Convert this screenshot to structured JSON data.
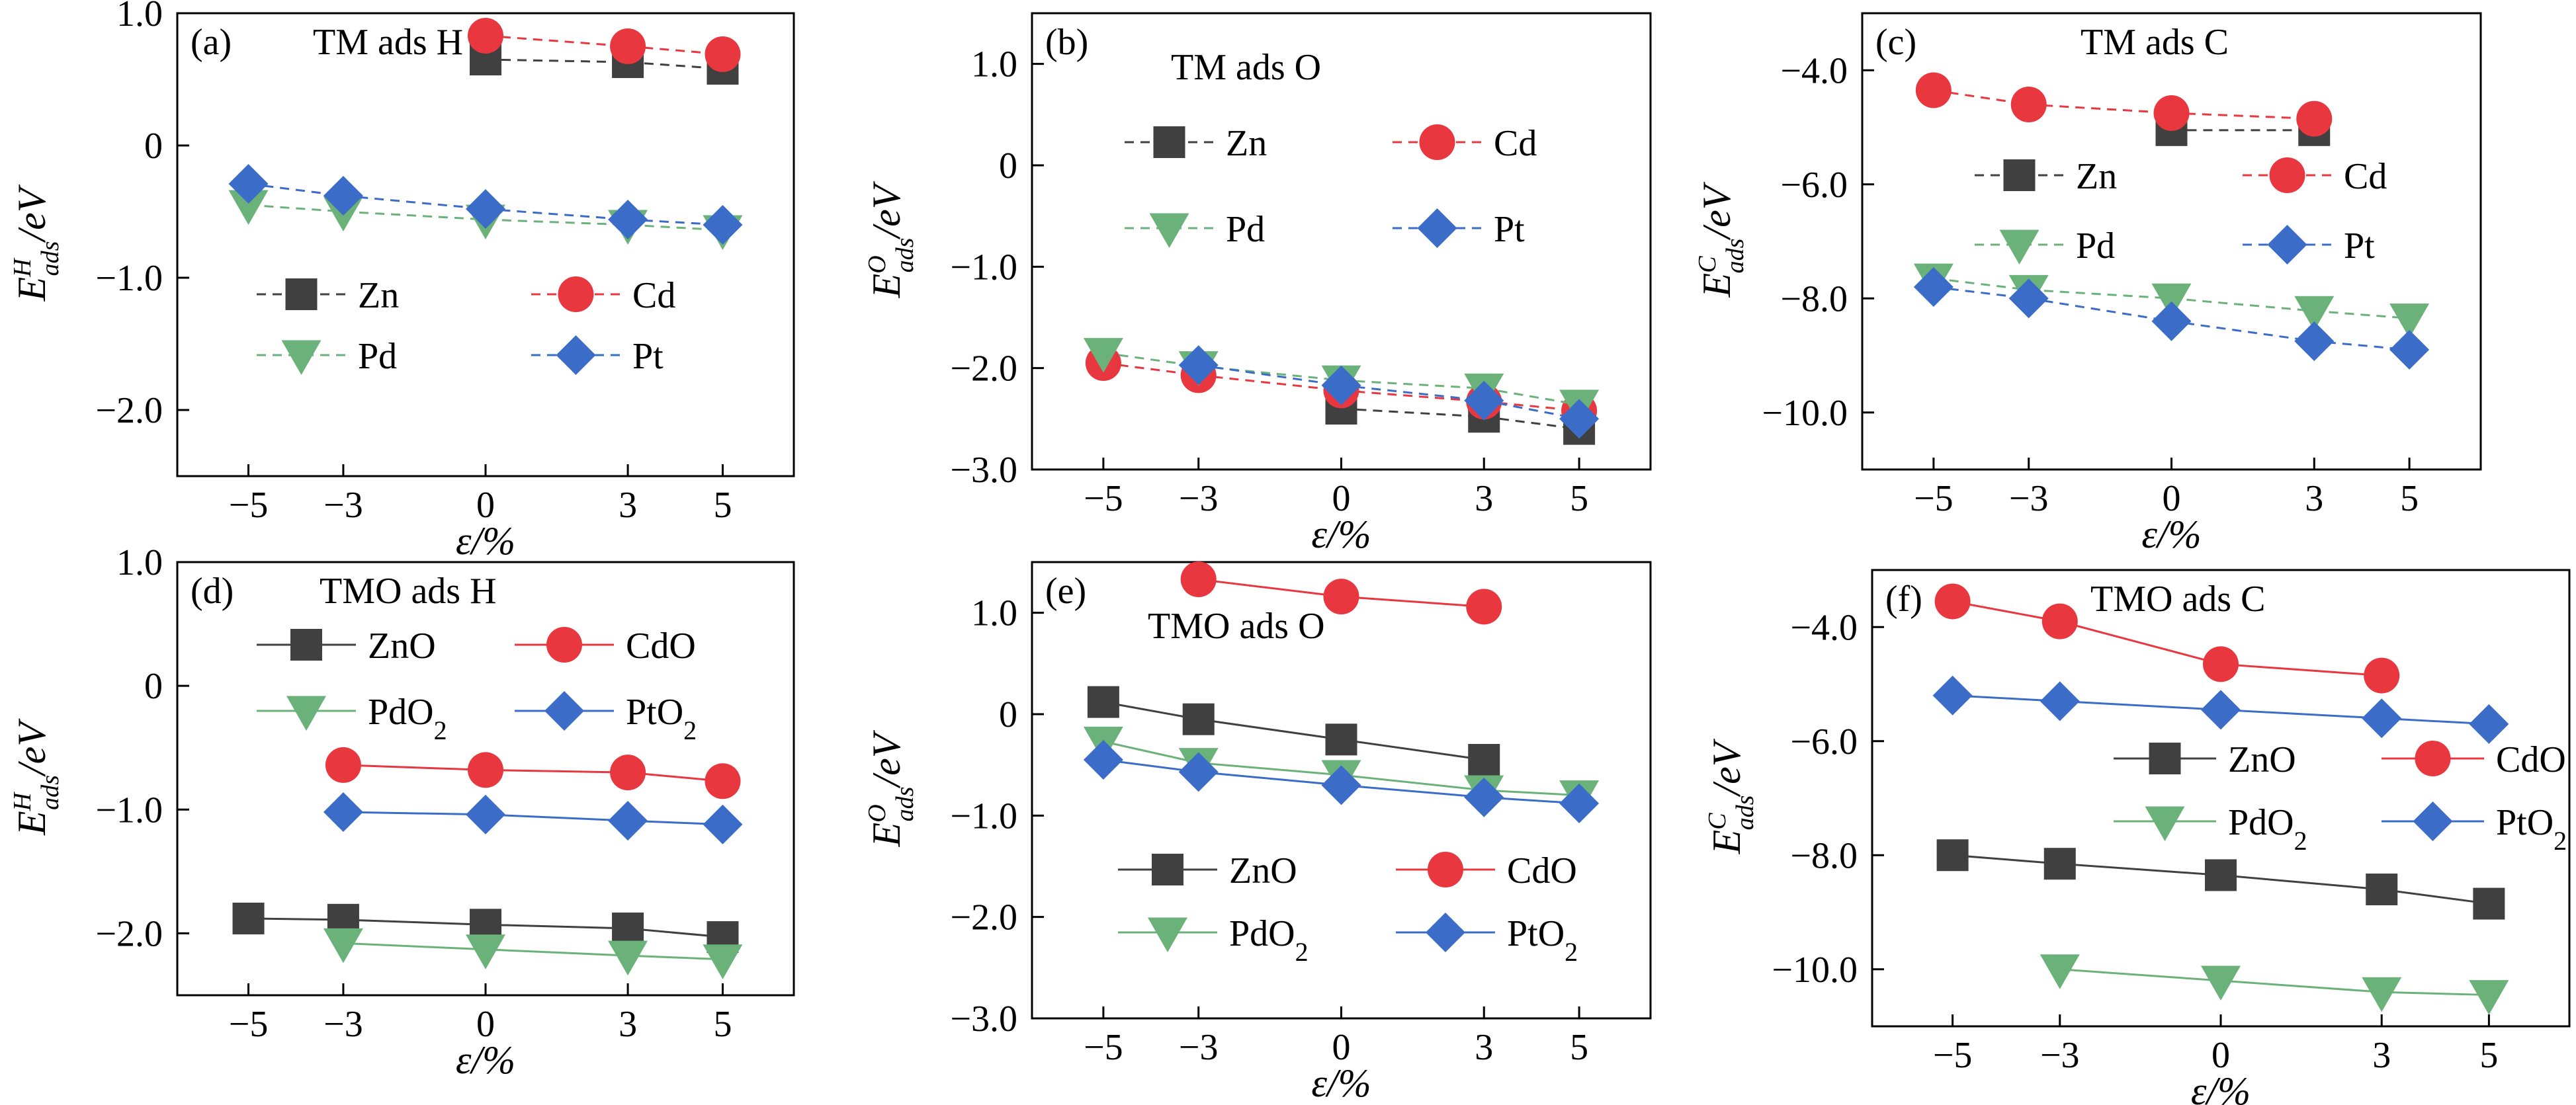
{
  "figure": {
    "colors": {
      "black": "#404040",
      "red": "#e8373f",
      "green": "#6bb27a",
      "blue": "#3a6cc8"
    }
  },
  "chart_data": [
    {
      "id": "a",
      "panel_label": "(a)",
      "title": "TM ads H",
      "type": "line",
      "line_style": "dashed",
      "xlabel": "ε/%",
      "ylabel": "E^H_ads/eV",
      "ylim": [
        -2.5,
        1.0
      ],
      "yticks": [
        1.0,
        0,
        -1.0,
        -2.0
      ],
      "ytick_labels": [
        "1.0",
        "0",
        "−1.0",
        "−2.0"
      ],
      "xticks": [
        -5,
        -3,
        0,
        3,
        5
      ],
      "xtick_labels": [
        "−5",
        "−3",
        "0",
        "3",
        "5"
      ],
      "xlim": [
        -6.5,
        6.5
      ],
      "legend_placement": "center-left",
      "series": [
        {
          "name": "Zn",
          "color": "#404040",
          "marker": "square",
          "x": [
            0,
            3,
            5
          ],
          "y": [
            0.65,
            0.63,
            0.58
          ]
        },
        {
          "name": "Cd",
          "color": "#e8373f",
          "marker": "circle",
          "x": [
            0,
            3,
            5
          ],
          "y": [
            0.83,
            0.75,
            0.69
          ]
        },
        {
          "name": "Pd",
          "color": "#6bb27a",
          "marker": "triangle-down",
          "x": [
            -5,
            -3,
            0,
            3,
            5
          ],
          "y": [
            -0.45,
            -0.5,
            -0.56,
            -0.6,
            -0.64
          ]
        },
        {
          "name": "Pt",
          "color": "#3a6cc8",
          "marker": "diamond",
          "x": [
            -5,
            -3,
            0,
            3,
            5
          ],
          "y": [
            -0.29,
            -0.38,
            -0.48,
            -0.56,
            -0.6
          ]
        }
      ]
    },
    {
      "id": "b",
      "panel_label": "(b)",
      "title": "TM ads O",
      "type": "line",
      "line_style": "dashed",
      "xlabel": "ε/%",
      "ylabel": "E^O_ads/eV",
      "ylim": [
        -3.0,
        1.5
      ],
      "yticks": [
        1.0,
        0,
        -1.0,
        -2.0,
        -3.0
      ],
      "ytick_labels": [
        "1.0",
        "0",
        "−1.0",
        "−2.0",
        "−3.0"
      ],
      "xticks": [
        -5,
        -3,
        0,
        3,
        5
      ],
      "xtick_labels": [
        "−5",
        "−3",
        "0",
        "3",
        "5"
      ],
      "xlim": [
        -6.5,
        6.5
      ],
      "legend_placement": "upper-left",
      "series": [
        {
          "name": "Zn",
          "color": "#404040",
          "marker": "square",
          "x": [
            0,
            3,
            5
          ],
          "y": [
            -2.4,
            -2.48,
            -2.6
          ]
        },
        {
          "name": "Cd",
          "color": "#e8373f",
          "marker": "circle",
          "x": [
            -5,
            -3,
            0,
            3,
            5
          ],
          "y": [
            -1.95,
            -2.07,
            -2.22,
            -2.33,
            -2.42
          ]
        },
        {
          "name": "Pd",
          "color": "#6bb27a",
          "marker": "triangle-down",
          "x": [
            -5,
            -3,
            0,
            3,
            5
          ],
          "y": [
            -1.85,
            -1.98,
            -2.12,
            -2.2,
            -2.36
          ]
        },
        {
          "name": "Pt",
          "color": "#3a6cc8",
          "marker": "diamond",
          "x": [
            -3,
            0,
            3,
            5
          ],
          "y": [
            -1.97,
            -2.17,
            -2.32,
            -2.5
          ]
        }
      ]
    },
    {
      "id": "c",
      "panel_label": "(c)",
      "title": "TM ads C",
      "type": "line",
      "line_style": "dashed",
      "xlabel": "ε/%",
      "ylabel": "E^C_ads/eV",
      "ylim": [
        -11.0,
        -3.0
      ],
      "yticks": [
        -4.0,
        -6.0,
        -8.0,
        -10.0
      ],
      "ytick_labels": [
        "−4.0",
        "−6.0",
        "−8.0",
        "−10.0"
      ],
      "xticks": [
        -5,
        -3,
        0,
        3,
        5
      ],
      "xtick_labels": [
        "−5",
        "−3",
        "0",
        "3",
        "5"
      ],
      "xlim": [
        -6.5,
        6.5
      ],
      "legend_placement": "center-left",
      "series": [
        {
          "name": "Zn",
          "color": "#404040",
          "marker": "square",
          "x": [
            0,
            3
          ],
          "y": [
            -5.05,
            -5.05
          ]
        },
        {
          "name": "Cd",
          "color": "#e8373f",
          "marker": "circle",
          "x": [
            -5,
            -3,
            0,
            3
          ],
          "y": [
            -4.35,
            -4.6,
            -4.75,
            -4.85
          ]
        },
        {
          "name": "Pd",
          "color": "#6bb27a",
          "marker": "triangle-down",
          "x": [
            -5,
            -3,
            0,
            3,
            5
          ],
          "y": [
            -7.65,
            -7.85,
            -8.0,
            -8.22,
            -8.35
          ]
        },
        {
          "name": "Pt",
          "color": "#3a6cc8",
          "marker": "diamond",
          "x": [
            -5,
            -3,
            0,
            3,
            5
          ],
          "y": [
            -7.8,
            -8.0,
            -8.4,
            -8.75,
            -8.9
          ]
        }
      ]
    },
    {
      "id": "d",
      "panel_label": "(d)",
      "title": "TMO ads H",
      "type": "line",
      "line_style": "solid",
      "xlabel": "ε/%",
      "ylabel": "E^H_ads/eV",
      "ylim": [
        -2.5,
        1.0
      ],
      "yticks": [
        1.0,
        0,
        -1.0,
        -2.0
      ],
      "ytick_labels": [
        "1.0",
        "0",
        "−1.0",
        "−2.0"
      ],
      "xticks": [
        -5,
        -3,
        0,
        3,
        5
      ],
      "xtick_labels": [
        "−5",
        "−3",
        "0",
        "3",
        "5"
      ],
      "xlim": [
        -6.5,
        6.5
      ],
      "legend_placement": "upper-left",
      "series": [
        {
          "name": "ZnO",
          "color": "#404040",
          "marker": "square",
          "x": [
            -5,
            -3,
            0,
            3,
            5
          ],
          "y": [
            -1.88,
            -1.89,
            -1.93,
            -1.96,
            -2.03
          ]
        },
        {
          "name": "CdO",
          "color": "#e8373f",
          "marker": "circle",
          "x": [
            -3,
            0,
            3,
            5
          ],
          "y": [
            -0.64,
            -0.68,
            -0.7,
            -0.77
          ]
        },
        {
          "name": "PdO2",
          "color": "#6bb27a",
          "marker": "triangle-down",
          "x": [
            -3,
            0,
            3,
            5
          ],
          "y": [
            -2.08,
            -2.13,
            -2.18,
            -2.21
          ]
        },
        {
          "name": "PtO2",
          "color": "#3a6cc8",
          "marker": "diamond",
          "x": [
            -3,
            0,
            3,
            5
          ],
          "y": [
            -1.02,
            -1.04,
            -1.09,
            -1.12
          ]
        }
      ]
    },
    {
      "id": "e",
      "panel_label": "(e)",
      "title": "TMO ads O",
      "type": "line",
      "line_style": "solid",
      "xlabel": "ε/%",
      "ylabel": "E^O_ads/eV",
      "ylim": [
        -3.0,
        1.5
      ],
      "yticks": [
        1.0,
        0,
        -1.0,
        -2.0,
        -3.0
      ],
      "ytick_labels": [
        "1.0",
        "0",
        "−1.0",
        "−2.0",
        "−3.0"
      ],
      "xticks": [
        -5,
        -3,
        0,
        3,
        5
      ],
      "xtick_labels": [
        "−5",
        "−3",
        "0",
        "3",
        "5"
      ],
      "xlim": [
        -6.5,
        6.5
      ],
      "legend_placement": "center-left",
      "series": [
        {
          "name": "ZnO",
          "color": "#404040",
          "marker": "square",
          "x": [
            -5,
            -3,
            0,
            3
          ],
          "y": [
            0.12,
            -0.05,
            -0.25,
            -0.45
          ]
        },
        {
          "name": "CdO",
          "color": "#e8373f",
          "marker": "circle",
          "x": [
            -3,
            0,
            3
          ],
          "y": [
            1.33,
            1.16,
            1.06
          ]
        },
        {
          "name": "PdO2",
          "color": "#6bb27a",
          "marker": "triangle-down",
          "x": [
            -5,
            -3,
            0,
            3,
            5
          ],
          "y": [
            -0.27,
            -0.48,
            -0.6,
            -0.75,
            -0.8
          ]
        },
        {
          "name": "PtO2",
          "color": "#3a6cc8",
          "marker": "diamond",
          "x": [
            -5,
            -3,
            0,
            3,
            5
          ],
          "y": [
            -0.45,
            -0.57,
            -0.7,
            -0.82,
            -0.88
          ]
        }
      ]
    },
    {
      "id": "f",
      "panel_label": "(f)",
      "title": "TMO ads C",
      "type": "line",
      "line_style": "solid",
      "xlabel": "ε/%",
      "ylabel": "E^C_ads/eV",
      "ylim": [
        -11.0,
        -3.0
      ],
      "yticks": [
        -4.0,
        -6.0,
        -8.0,
        -10.0
      ],
      "ytick_labels": [
        "−4.0",
        "−6.0",
        "−8.0",
        "−10.0"
      ],
      "xticks": [
        -5,
        -3,
        0,
        3,
        5
      ],
      "xtick_labels": [
        "−5",
        "−3",
        "0",
        "3",
        "5"
      ],
      "xlim": [
        -6.5,
        6.5
      ],
      "legend_placement": "center-right",
      "series": [
        {
          "name": "ZnO",
          "color": "#404040",
          "marker": "square",
          "x": [
            -5,
            -3,
            0,
            3,
            5
          ],
          "y": [
            -8.0,
            -8.15,
            -8.35,
            -8.6,
            -8.85
          ]
        },
        {
          "name": "CdO",
          "color": "#e8373f",
          "marker": "circle",
          "x": [
            -5,
            -3,
            0,
            3
          ],
          "y": [
            -3.55,
            -3.9,
            -4.65,
            -4.85
          ]
        },
        {
          "name": "PdO2",
          "color": "#6bb27a",
          "marker": "triangle-down",
          "x": [
            -3,
            0,
            3,
            5
          ],
          "y": [
            -10.0,
            -10.2,
            -10.4,
            -10.45
          ]
        },
        {
          "name": "PtO2",
          "color": "#3a6cc8",
          "marker": "diamond",
          "x": [
            -5,
            -3,
            0,
            3,
            5
          ],
          "y": [
            -5.2,
            -5.3,
            -5.45,
            -5.6,
            -5.7
          ]
        }
      ]
    }
  ]
}
